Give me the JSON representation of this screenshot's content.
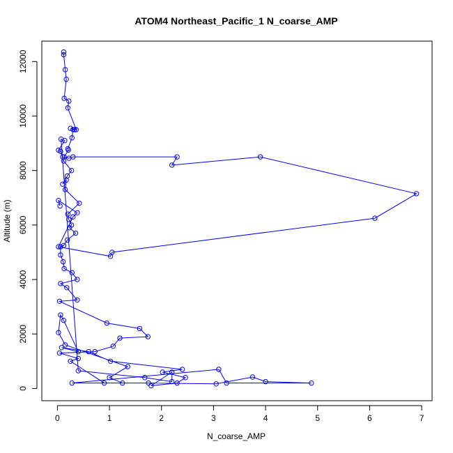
{
  "chart_data": {
    "type": "line",
    "title": "ATOM4 Northeast_Pacific_1 N_coarse_AMP",
    "xlabel": "N_coarse_AMP",
    "ylabel": "Altitude (m)",
    "xlim": [
      -0.3,
      7.2
    ],
    "ylim": [
      -450,
      12750
    ],
    "xticks": [
      "0",
      "1",
      "2",
      "3",
      "4",
      "5",
      "6",
      "7"
    ],
    "yticks": [
      "0",
      "2000",
      "4000",
      "6000",
      "8000",
      "10000",
      "12000"
    ],
    "grid": false,
    "legend": "none",
    "series": [
      {
        "color": "#0000ff",
        "marker": "open-circle",
        "x": [
          0.12,
          0.12,
          0.15,
          0.17,
          0.13,
          0.22,
          0.2,
          0.36,
          0.25,
          0.33,
          0.3,
          0.28,
          0.2,
          0.21,
          0.13,
          0.12,
          0.27,
          0.19,
          0.1,
          0.17,
          0.15,
          0.42,
          0.2,
          0.22,
          0.27,
          0.23,
          0.35,
          0.19,
          0.12,
          0.06,
          0.06,
          0.11,
          0.13,
          0.28,
          0.38,
          0.06,
          0.18,
          0.38,
          0.04,
          0.95,
          1.58,
          1.74,
          1.2,
          1.07,
          0.72,
          0.04,
          0.4,
          0.25,
          0.9,
          1.75,
          3.05,
          3.75,
          4.0,
          4.88,
          3.25,
          3.1,
          0.28,
          1.25,
          1.0,
          1.35,
          0.15,
          0.02,
          0.06,
          0.12,
          0.4,
          0.08,
          0.6,
          1.02,
          2.4,
          2.02,
          2.46,
          2.3,
          1.8,
          2.2,
          2.2,
          1.68,
          0.4,
          0.07,
          0.14,
          0.02,
          0.06,
          0.1,
          0.22,
          0.3,
          2.3,
          2.2,
          3.9,
          6.9,
          6.1,
          1.05,
          1.02,
          0.02,
          0.3,
          0.38,
          0.02,
          0.05
        ],
        "y": [
          12350,
          12250,
          11700,
          11350,
          10650,
          10550,
          10300,
          9500,
          9550,
          9500,
          9500,
          9200,
          8800,
          8750,
          8500,
          8350,
          8000,
          7800,
          7500,
          7650,
          7300,
          6800,
          6400,
          6200,
          6000,
          5900,
          5700,
          5450,
          5250,
          5200,
          4900,
          4650,
          4400,
          4250,
          4000,
          3850,
          3700,
          3250,
          3200,
          2400,
          2200,
          1900,
          1850,
          1550,
          1350,
          1300,
          1100,
          1000,
          200,
          200,
          170,
          420,
          250,
          200,
          200,
          700,
          200,
          200,
          400,
          800,
          1600,
          2050,
          2700,
          2500,
          1350,
          1500,
          1350,
          1000,
          700,
          600,
          400,
          200,
          100,
          600,
          250,
          400,
          650,
          9150,
          9100,
          8750,
          8700,
          8500,
          8450,
          8500,
          8500,
          8200,
          8500,
          7150,
          6250,
          5000,
          4850,
          5200,
          6300,
          6450,
          6900,
          6700
        ]
      }
    ]
  }
}
